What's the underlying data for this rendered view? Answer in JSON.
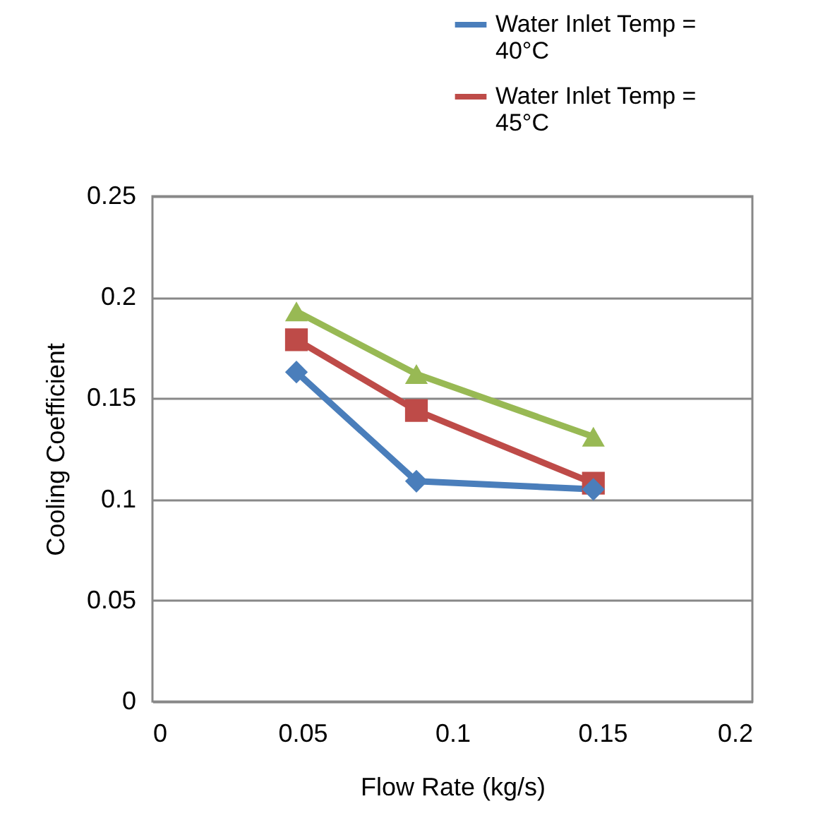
{
  "chart_data": {
    "type": "line",
    "xlabel": "Flow Rate (kg/s)",
    "ylabel": "Cooling Coefficient",
    "x": [
      0.048,
      0.088,
      0.147
    ],
    "series": [
      {
        "name": "Water Inlet Temp = 40°C",
        "color": "#4a7ebb",
        "marker": "diamond",
        "values": [
          0.163,
          0.109,
          0.105
        ]
      },
      {
        "name": "Water Inlet Temp = 45°C",
        "color": "#be4b48",
        "marker": "square",
        "values": [
          0.179,
          0.144,
          0.108
        ]
      },
      {
        "color": "#98b954",
        "marker": "triangle",
        "values": [
          0.193,
          0.162,
          0.131
        ]
      }
    ],
    "xlim": [
      0,
      0.2
    ],
    "xticks": [
      0,
      0.05,
      0.1,
      0.15,
      0.2
    ],
    "ylim": [
      0,
      0.25
    ],
    "yticks": [
      0,
      0.05,
      0.1,
      0.15,
      0.2,
      0.25
    ],
    "grid": "y",
    "legend": "top right"
  }
}
